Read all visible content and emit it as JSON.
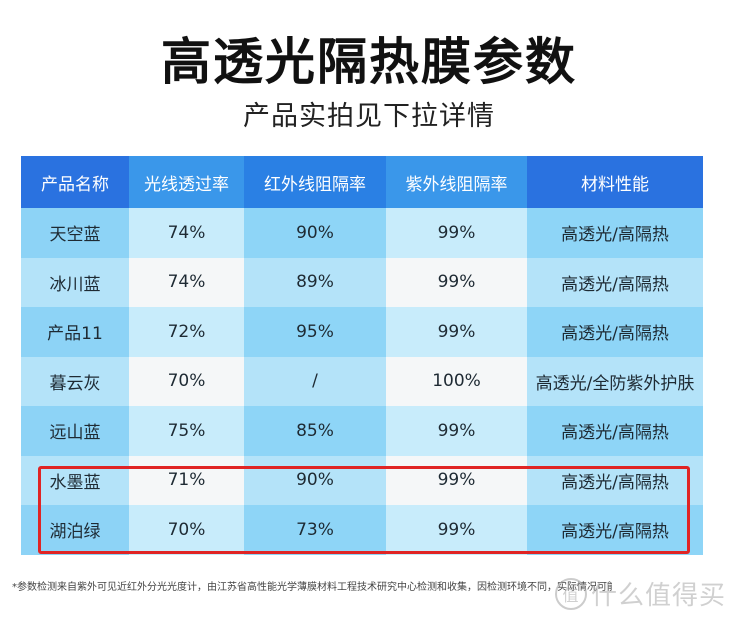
{
  "header": {
    "title": "高透光隔热膜参数",
    "subtitle": "产品实拍见下拉详情"
  },
  "table": {
    "columns": [
      "产品名称",
      "光线透过率",
      "红外线阻隔率",
      "紫外线阻隔率",
      "材料性能"
    ],
    "rows": [
      [
        "天空蓝",
        "74%",
        "90%",
        "99%",
        "高透光/高隔热"
      ],
      [
        "冰川蓝",
        "74%",
        "89%",
        "99%",
        "高透光/高隔热"
      ],
      [
        "产品11",
        "72%",
        "95%",
        "99%",
        "高透光/高隔热"
      ],
      [
        "暮云灰",
        "70%",
        "/",
        "100%",
        "高透光/全防紫外护肤"
      ],
      [
        "远山蓝",
        "75%",
        "85%",
        "99%",
        "高透光/高隔热"
      ],
      [
        "水墨蓝",
        "71%",
        "90%",
        "99%",
        "高透光/高隔热"
      ],
      [
        "湖泊绿",
        "70%",
        "73%",
        "99%",
        "高透光/高隔热"
      ]
    ],
    "highlighted_rows": [
      "水墨蓝",
      "湖泊绿"
    ]
  },
  "colors": {
    "header_dark": "#2a72e0",
    "header_light": "#3a97ea",
    "highlight": "#e02424"
  },
  "footnote": "*参数检测来自紫外可见近红外分光光度计，由江苏省高性能光学薄膜材料工程技术研究中心检测和收集，因检测环境不同，实际情况可能有所误差",
  "watermark": {
    "badge": "值",
    "text": "什么值得买"
  }
}
